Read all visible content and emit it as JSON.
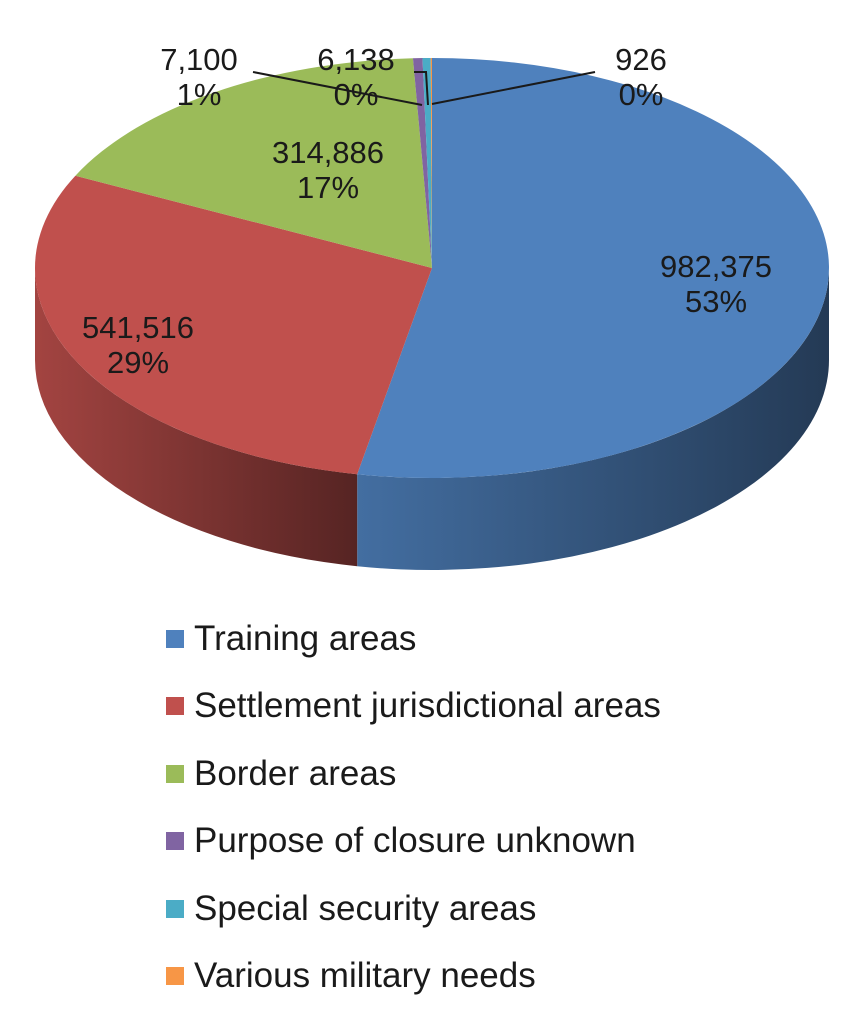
{
  "chart_data": {
    "type": "pie",
    "title": "",
    "slices": [
      {
        "name": "Training areas",
        "value": 982375,
        "value_label": "982,375",
        "percent_label": "53%",
        "color": "#4F81BD"
      },
      {
        "name": "Settlement jurisdictional areas",
        "value": 541516,
        "value_label": "541,516",
        "percent_label": "29%",
        "color": "#C0504D"
      },
      {
        "name": "Border areas",
        "value": 314886,
        "value_label": "314,886",
        "percent_label": "17%",
        "color": "#9BBB59"
      },
      {
        "name": "Purpose of closure unknown",
        "value": 7100,
        "value_label": "7,100",
        "percent_label": "1%",
        "color": "#8064A2"
      },
      {
        "name": "Special security areas",
        "value": 6138,
        "value_label": "6,138",
        "percent_label": "0%",
        "color": "#4BACC6"
      },
      {
        "name": "Various military needs",
        "value": 926,
        "value_label": "926",
        "percent_label": "0%",
        "color": "#F79646"
      }
    ],
    "legend_position": "bottom",
    "style": "3d-pie"
  }
}
